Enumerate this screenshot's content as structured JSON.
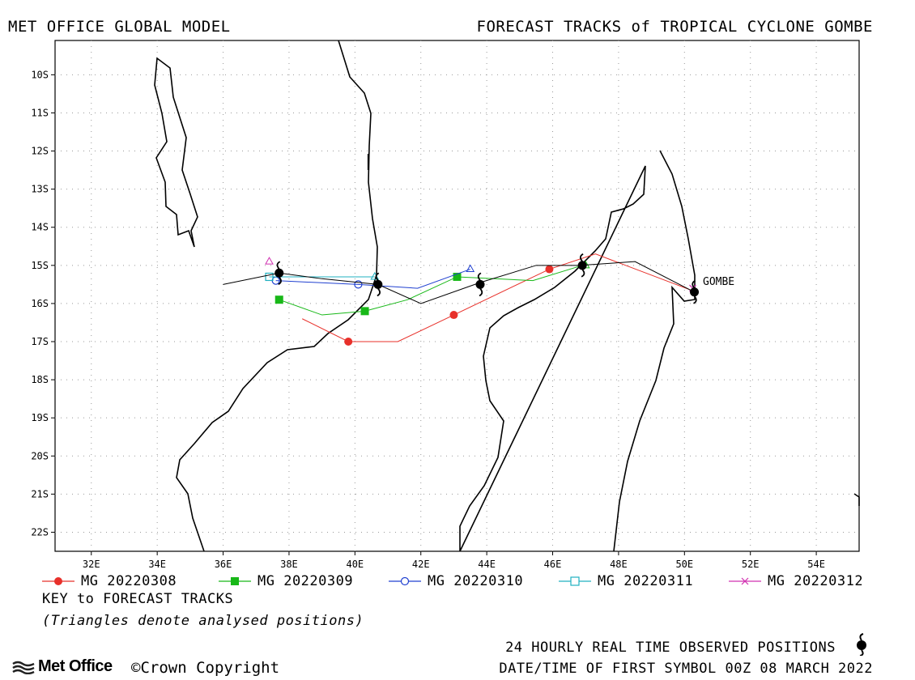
{
  "header": {
    "left_title": "MET OFFICE GLOBAL MODEL",
    "right_title": "FORECAST TRACKS of TROPICAL CYCLONE GOMBE"
  },
  "map": {
    "lon_range": [
      30.9,
      55.3
    ],
    "lat_range": [
      -22.5,
      -9.1
    ],
    "lon_ticks": [
      "32E",
      "34E",
      "36E",
      "38E",
      "40E",
      "42E",
      "44E",
      "46E",
      "48E",
      "50E",
      "52E",
      "54E"
    ],
    "lat_ticks": [
      "10S",
      "11S",
      "12S",
      "13S",
      "14S",
      "15S",
      "16S",
      "17S",
      "18S",
      "19S",
      "20S",
      "21S",
      "22S"
    ],
    "grid": true,
    "storm_label": "GOMBE"
  },
  "tracks": [
    {
      "name": "MG 20220308",
      "color": "#e8302a",
      "marker": "circle-filled",
      "points": [
        [
          50.2,
          -15.65
        ],
        [
          47.3,
          -14.7
        ],
        [
          45.9,
          -15.1
        ],
        [
          43.0,
          -16.3
        ],
        [
          41.3,
          -17.0
        ],
        [
          39.8,
          -17.0
        ],
        [
          38.4,
          -16.4
        ]
      ],
      "markers": [
        [
          45.9,
          -15.1
        ],
        [
          43.0,
          -16.3
        ],
        [
          39.8,
          -17.0
        ]
      ]
    },
    {
      "name": "MG 20220309",
      "color": "#18b818",
      "marker": "square-filled",
      "points": [
        [
          46.9,
          -15.0
        ],
        [
          45.4,
          -15.4
        ],
        [
          43.1,
          -15.3
        ],
        [
          41.6,
          -15.9
        ],
        [
          40.3,
          -16.2
        ],
        [
          39.0,
          -16.3
        ],
        [
          37.7,
          -15.9
        ]
      ],
      "markers": [
        [
          43.1,
          -15.3
        ],
        [
          40.3,
          -16.2
        ],
        [
          37.7,
          -15.9
        ]
      ]
    },
    {
      "name": "MG 20220310",
      "color": "#2040d0",
      "marker": "circle-open",
      "points": [
        [
          43.5,
          -15.1
        ],
        [
          41.9,
          -15.6
        ],
        [
          40.1,
          -15.5
        ],
        [
          37.6,
          -15.4
        ]
      ],
      "markers": [
        [
          40.1,
          -15.5
        ],
        [
          37.6,
          -15.4
        ]
      ]
    },
    {
      "name": "MG 20220311",
      "color": "#20b0c0",
      "marker": "square-open",
      "points": [
        [
          40.6,
          -15.3
        ],
        [
          37.4,
          -15.3
        ]
      ],
      "markers": [
        [
          37.4,
          -15.3
        ]
      ]
    },
    {
      "name": "MG 20220312",
      "color": "#d030b0",
      "marker": "cross",
      "points": [
        [
          50.25,
          -15.6
        ]
      ],
      "markers": [
        [
          50.25,
          -15.6
        ]
      ]
    }
  ],
  "observed_track": {
    "points": [
      [
        50.3,
        -15.7
      ],
      [
        48.5,
        -14.9
      ],
      [
        46.8,
        -15.0
      ],
      [
        45.5,
        -15.0
      ],
      [
        43.8,
        -15.45
      ],
      [
        42.0,
        -16.0
      ],
      [
        40.7,
        -15.5
      ],
      [
        39.0,
        -15.35
      ],
      [
        37.7,
        -15.2
      ],
      [
        36.0,
        -15.5
      ]
    ]
  },
  "observed_symbols": [
    [
      50.3,
      -15.7
    ],
    [
      46.9,
      -15.0
    ],
    [
      43.8,
      -15.5
    ],
    [
      40.7,
      -15.5
    ],
    [
      37.7,
      -15.2
    ]
  ],
  "analysed_triangles": [
    [
      37.4,
      -14.9,
      "#d030b0"
    ],
    [
      43.5,
      -15.1,
      "#2040d0"
    ],
    [
      40.6,
      -15.3,
      "#20b0c0"
    ],
    [
      47.0,
      -15.0,
      "#18b818"
    ]
  ],
  "key": {
    "title": "KEY to FORECAST TRACKS",
    "subtitle": "(Triangles denote analysed positions)"
  },
  "footer": {
    "observed_label": "24 HOURLY REAL TIME OBSERVED POSITIONS",
    "date_label": "DATE/TIME OF FIRST SYMBOL 00Z 08 MARCH 2022",
    "brand": "Met Office",
    "copyright": "©Crown Copyright"
  },
  "colors": {
    "red": "#e8302a",
    "green": "#18b818",
    "blue": "#2040d0",
    "cyan": "#20b0c0",
    "magenta": "#d030b0"
  }
}
